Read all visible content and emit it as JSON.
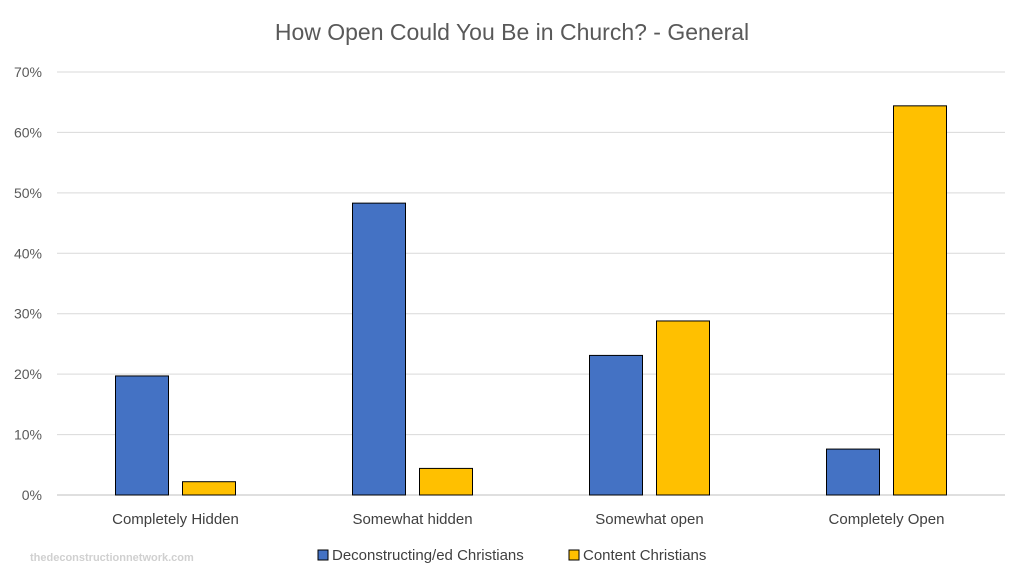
{
  "chart_data": {
    "type": "bar",
    "title": "How Open Could You Be in Church? - General",
    "categories": [
      "Completely Hidden",
      "Somewhat hidden",
      "Somewhat open",
      "Completely Open"
    ],
    "series": [
      {
        "name": "Deconstructing/ed Christians",
        "values": [
          19.7,
          48.3,
          23.1,
          7.6
        ],
        "color": "#4472C4"
      },
      {
        "name": "Content Christians",
        "values": [
          2.2,
          4.4,
          28.8,
          64.4
        ],
        "color": "#FFC000"
      }
    ],
    "ylim": [
      0,
      70
    ],
    "yticks": [
      "0%",
      "10%",
      "20%",
      "30%",
      "40%",
      "50%",
      "60%",
      "70%"
    ],
    "grid": true,
    "legend_position": "bottom"
  },
  "watermark": "thedeconstructionnetwork.com"
}
